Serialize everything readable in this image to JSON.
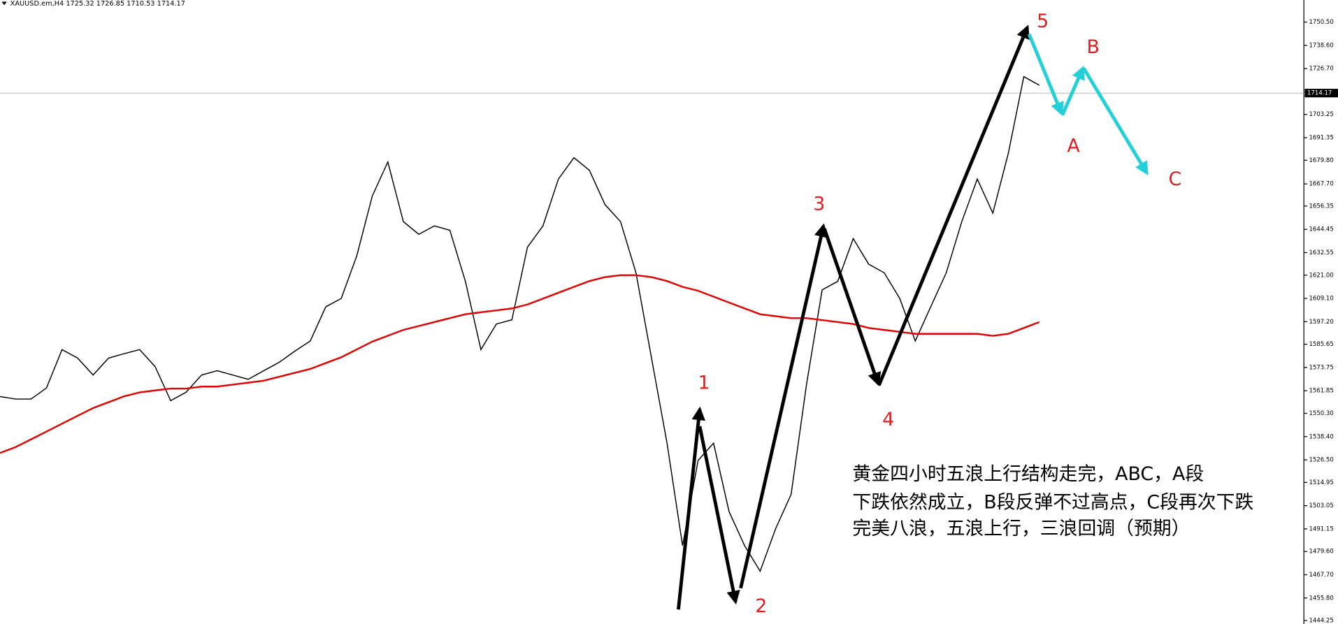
{
  "chart_data": {
    "type": "line",
    "title": "XAUUSD.em,H4  1725.32 1726.85 1710.53 1714.17",
    "categories": [
      null,
      null,
      null,
      null,
      null,
      null,
      null,
      null,
      null,
      null,
      null,
      null,
      null,
      null,
      null,
      null,
      null,
      null,
      null,
      null,
      null,
      null,
      null,
      null,
      null,
      null,
      null,
      null,
      null,
      null,
      null,
      null,
      null,
      null,
      null,
      null,
      null,
      null,
      null,
      null,
      null,
      null,
      null,
      null,
      null,
      null,
      null,
      null,
      null,
      null,
      null,
      null,
      null,
      null,
      null,
      null,
      null,
      null,
      null,
      null,
      null,
      null,
      null,
      null,
      null,
      null,
      null,
      null
    ],
    "series": [
      {
        "color": "#000000",
        "values": [
          1558.9,
          1557.6,
          1557.6,
          1563.3,
          1582.9,
          1578.6,
          1569.9,
          1578.6,
          1580.8,
          1582.9,
          1574.2,
          1556.8,
          1561.1,
          1569.9,
          1572.1,
          1569.9,
          1567.7,
          1572.1,
          1576.4,
          1582.1,
          1587.3,
          1604.8,
          1609.1,
          1630.9,
          1661.5,
          1678.9,
          1648.4,
          1641.9,
          1646.2,
          1644.0,
          1617.8,
          1582.9,
          1596.0,
          1598.2,
          1635.3,
          1646.2,
          1670.2,
          1681.1,
          1674.6,
          1657.1,
          1648.4,
          1622.2,
          1578.6,
          1535.0,
          1482.6,
          1526.2,
          1535.0,
          1500.0,
          1482.6,
          1469.5,
          1491.3,
          1508.8,
          1565.5,
          1613.5,
          1617.8,
          1639.7,
          1626.6,
          1622.2,
          1609.1,
          1587.3,
          1604.8,
          1622.2,
          1648.4,
          1670.2,
          1652.7,
          1683.3,
          1722.6,
          1718.2
        ]
      },
      {
        "color": "#e00000",
        "values": [
          1530,
          1533,
          1537,
          1541,
          1545,
          1549,
          1553,
          1556,
          1559,
          1561,
          1562,
          1563,
          1563,
          1564,
          1564,
          1565,
          1566,
          1567,
          1569,
          1571,
          1573,
          1576,
          1579,
          1583,
          1587,
          1590,
          1593,
          1595,
          1597,
          1599,
          1601,
          1602,
          1603,
          1604,
          1606,
          1609,
          1612,
          1615,
          1618,
          1620,
          1621,
          1621,
          1620,
          1618,
          1615,
          1613,
          1610,
          1607,
          1604,
          1601,
          1600,
          1599,
          1599,
          1598,
          1597,
          1596,
          1594,
          1593,
          1592,
          1591,
          1591,
          1591,
          1591,
          1591,
          1590,
          1591,
          1594,
          1597
        ]
      }
    ],
    "current_price": 1714.17,
    "ylim": [
      1442.5,
      1761.8
    ],
    "yticks": [
      {
        "value": 1750.5,
        "label": "1750.50"
      },
      {
        "value": 1738.6,
        "label": "1738.60"
      },
      {
        "value": 1726.7,
        "label": "1726.70"
      },
      {
        "value": 1703.25,
        "label": "1703.25"
      },
      {
        "value": 1691.35,
        "label": "1691.35"
      },
      {
        "value": 1679.8,
        "label": "1679.80"
      },
      {
        "value": 1667.7,
        "label": "1667.70"
      },
      {
        "value": 1656.35,
        "label": "1656.35"
      },
      {
        "value": 1644.45,
        "label": "1644.45"
      },
      {
        "value": 1632.55,
        "label": "1632.55"
      },
      {
        "value": 1621,
        "label": "1621.00"
      },
      {
        "value": 1609.1,
        "label": "1609.10"
      },
      {
        "value": 1597.2,
        "label": "1597.20"
      },
      {
        "value": 1585.65,
        "label": "1585.65"
      },
      {
        "value": 1573.75,
        "label": "1573.75"
      },
      {
        "value": 1561.85,
        "label": "1561.85"
      },
      {
        "value": 1550.3,
        "label": "1550.30"
      },
      {
        "value": 1538.4,
        "label": "1538.40"
      },
      {
        "value": 1526.5,
        "label": "1526.50"
      },
      {
        "value": 1514.95,
        "label": "1514.95"
      },
      {
        "value": 1503.05,
        "label": "1503.05"
      },
      {
        "value": 1491.15,
        "label": "1491.15"
      },
      {
        "value": 1479.6,
        "label": "1479.60"
      },
      {
        "value": 1467.7,
        "label": "1467.70"
      },
      {
        "value": 1455.8,
        "label": "1455.80"
      },
      {
        "value": 1444.25,
        "label": "1444.25"
      }
    ],
    "grid": false,
    "wave_labels": [
      "1",
      "2",
      "3",
      "4",
      "5",
      "A",
      "B",
      "C"
    ],
    "annotation": [
      "黄金四小时五浪上行结构走完，ABC，A段",
      "下跌依然成立，B段反弹不过高点，C段再次下跌",
      "完美八浪，五浪上行，三浪回调（预期）"
    ]
  }
}
